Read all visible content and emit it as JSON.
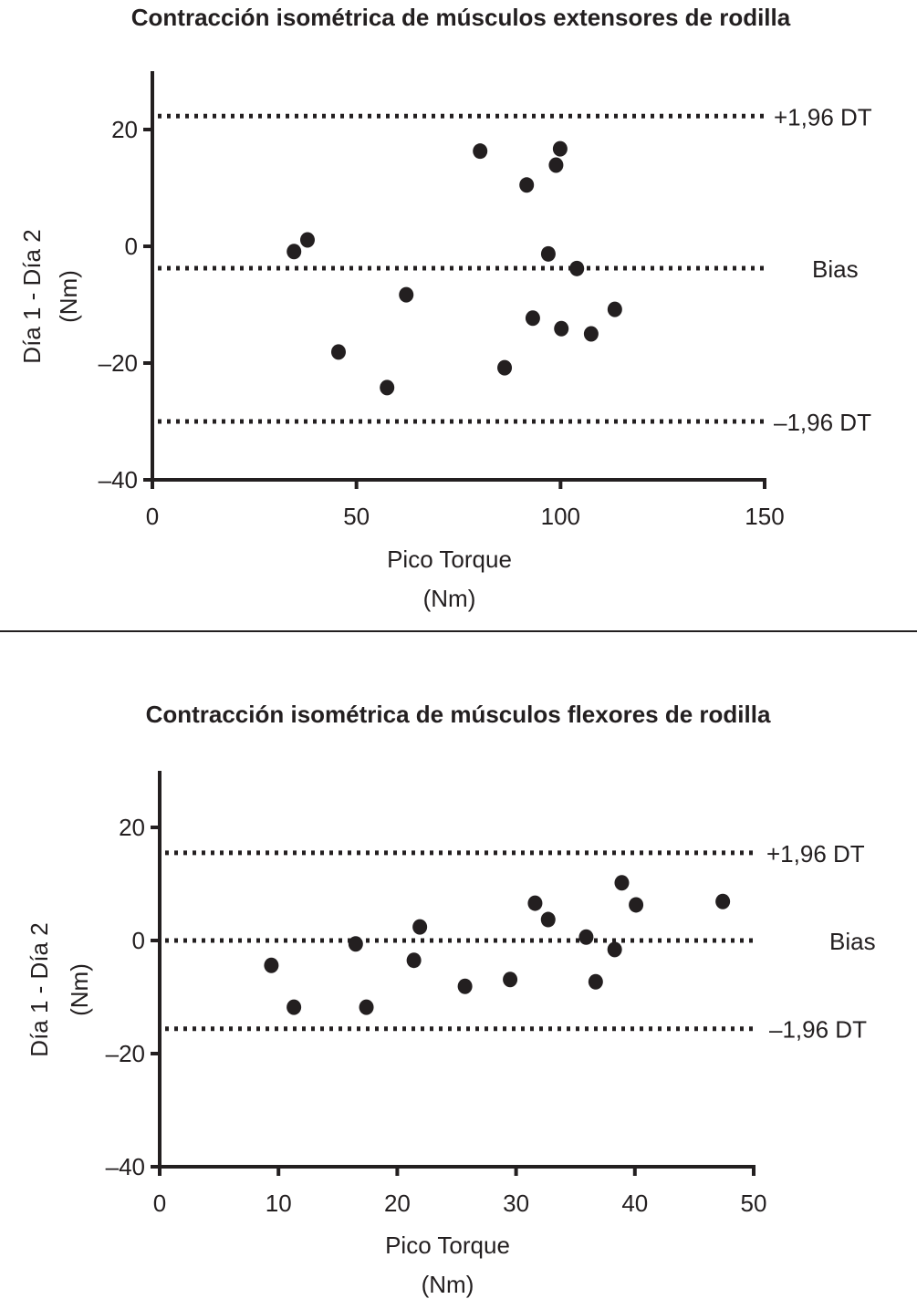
{
  "chart_data": [
    {
      "type": "scatter",
      "title": "Contracción isométrica de músculos extensores de rodilla",
      "xlabel": [
        "Pico Torque",
        "(Nm)"
      ],
      "ylabel": [
        "Día 1 - Día 2",
        "(Nm)"
      ],
      "xlim": [
        0,
        150
      ],
      "ylim": [
        -40,
        30
      ],
      "xticks": [
        0,
        50,
        100,
        150
      ],
      "yticks": [
        -40,
        -20,
        0,
        20
      ],
      "ytick_labels": [
        "–40",
        "–20",
        "0",
        "20"
      ],
      "grid": false,
      "reference_lines": [
        {
          "label": "+1,96 DT",
          "y": 22.3
        },
        {
          "label": "Bias",
          "y": -3.75
        },
        {
          "label": "–1,96 DT",
          "y": -30.0
        }
      ],
      "points": [
        {
          "x": 34.7,
          "y": -0.9
        },
        {
          "x": 38.0,
          "y": 1.1
        },
        {
          "x": 45.6,
          "y": -18.1
        },
        {
          "x": 57.5,
          "y": -24.2
        },
        {
          "x": 62.2,
          "y": -8.3
        },
        {
          "x": 80.3,
          "y": 16.3
        },
        {
          "x": 86.3,
          "y": -20.8
        },
        {
          "x": 91.7,
          "y": 10.5
        },
        {
          "x": 93.2,
          "y": -12.3
        },
        {
          "x": 97.0,
          "y": -1.3
        },
        {
          "x": 98.9,
          "y": 13.9
        },
        {
          "x": 99.9,
          "y": 16.7
        },
        {
          "x": 100.2,
          "y": -14.1
        },
        {
          "x": 104.0,
          "y": -3.8
        },
        {
          "x": 107.5,
          "y": -15.0
        },
        {
          "x": 113.3,
          "y": -10.8
        }
      ]
    },
    {
      "type": "scatter",
      "title": "Contracción isométrica de músculos flexores de rodilla",
      "xlabel": [
        "Pico Torque",
        "(Nm)"
      ],
      "ylabel": [
        "Día 1 - Día 2",
        "(Nm)"
      ],
      "xlim": [
        0,
        50
      ],
      "ylim": [
        -40,
        30
      ],
      "xticks": [
        0,
        10,
        20,
        30,
        40,
        50
      ],
      "yticks": [
        -40,
        -20,
        0,
        20
      ],
      "ytick_labels": [
        "–40",
        "–20",
        "0",
        "20"
      ],
      "grid": false,
      "reference_lines": [
        {
          "label": "+1,96 DT",
          "y": 15.5
        },
        {
          "label": "Bias",
          "y": 0
        },
        {
          "label": "–1,96 DT",
          "y": -15.6
        }
      ],
      "points": [
        {
          "x": 9.4,
          "y": -4.4
        },
        {
          "x": 11.3,
          "y": -11.8
        },
        {
          "x": 16.5,
          "y": -0.6
        },
        {
          "x": 17.4,
          "y": -11.8
        },
        {
          "x": 21.4,
          "y": -3.5
        },
        {
          "x": 21.9,
          "y": 2.4
        },
        {
          "x": 25.7,
          "y": -8.1
        },
        {
          "x": 29.5,
          "y": -6.9
        },
        {
          "x": 31.6,
          "y": 6.6
        },
        {
          "x": 32.7,
          "y": 3.7
        },
        {
          "x": 35.9,
          "y": 0.6
        },
        {
          "x": 36.7,
          "y": -7.3
        },
        {
          "x": 38.3,
          "y": -1.6
        },
        {
          "x": 38.9,
          "y": 10.2
        },
        {
          "x": 40.1,
          "y": 6.3
        },
        {
          "x": 47.4,
          "y": 6.9
        }
      ]
    }
  ]
}
